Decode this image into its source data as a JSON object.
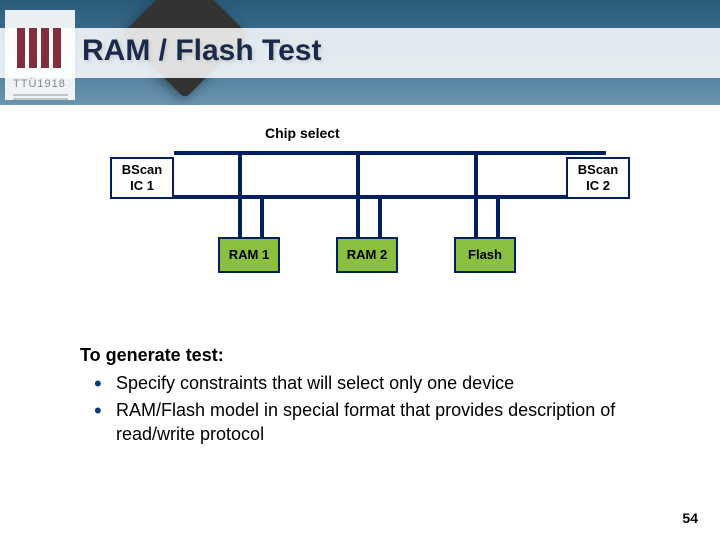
{
  "header": {
    "title": "RAM / Flash Test",
    "logo_text": "TTÜ1918"
  },
  "diagram": {
    "chip_select_label": "Chip select",
    "nodes": {
      "bscan1": "BScan\nIC 1",
      "bscan2": "BScan\nIC 2",
      "ram1": "RAM 1",
      "ram2": "RAM 2",
      "flash": "Flash"
    },
    "colors": {
      "bus": "#002060",
      "memory_fill": "#8bbf3f",
      "bscan_fill": "#ffffff",
      "border": "#002060"
    }
  },
  "body": {
    "heading": "To generate test:",
    "bullets": [
      "Specify constraints that will select only one device",
      "RAM/Flash model in special format that provides description of read/write protocol"
    ]
  },
  "page_number": "54"
}
